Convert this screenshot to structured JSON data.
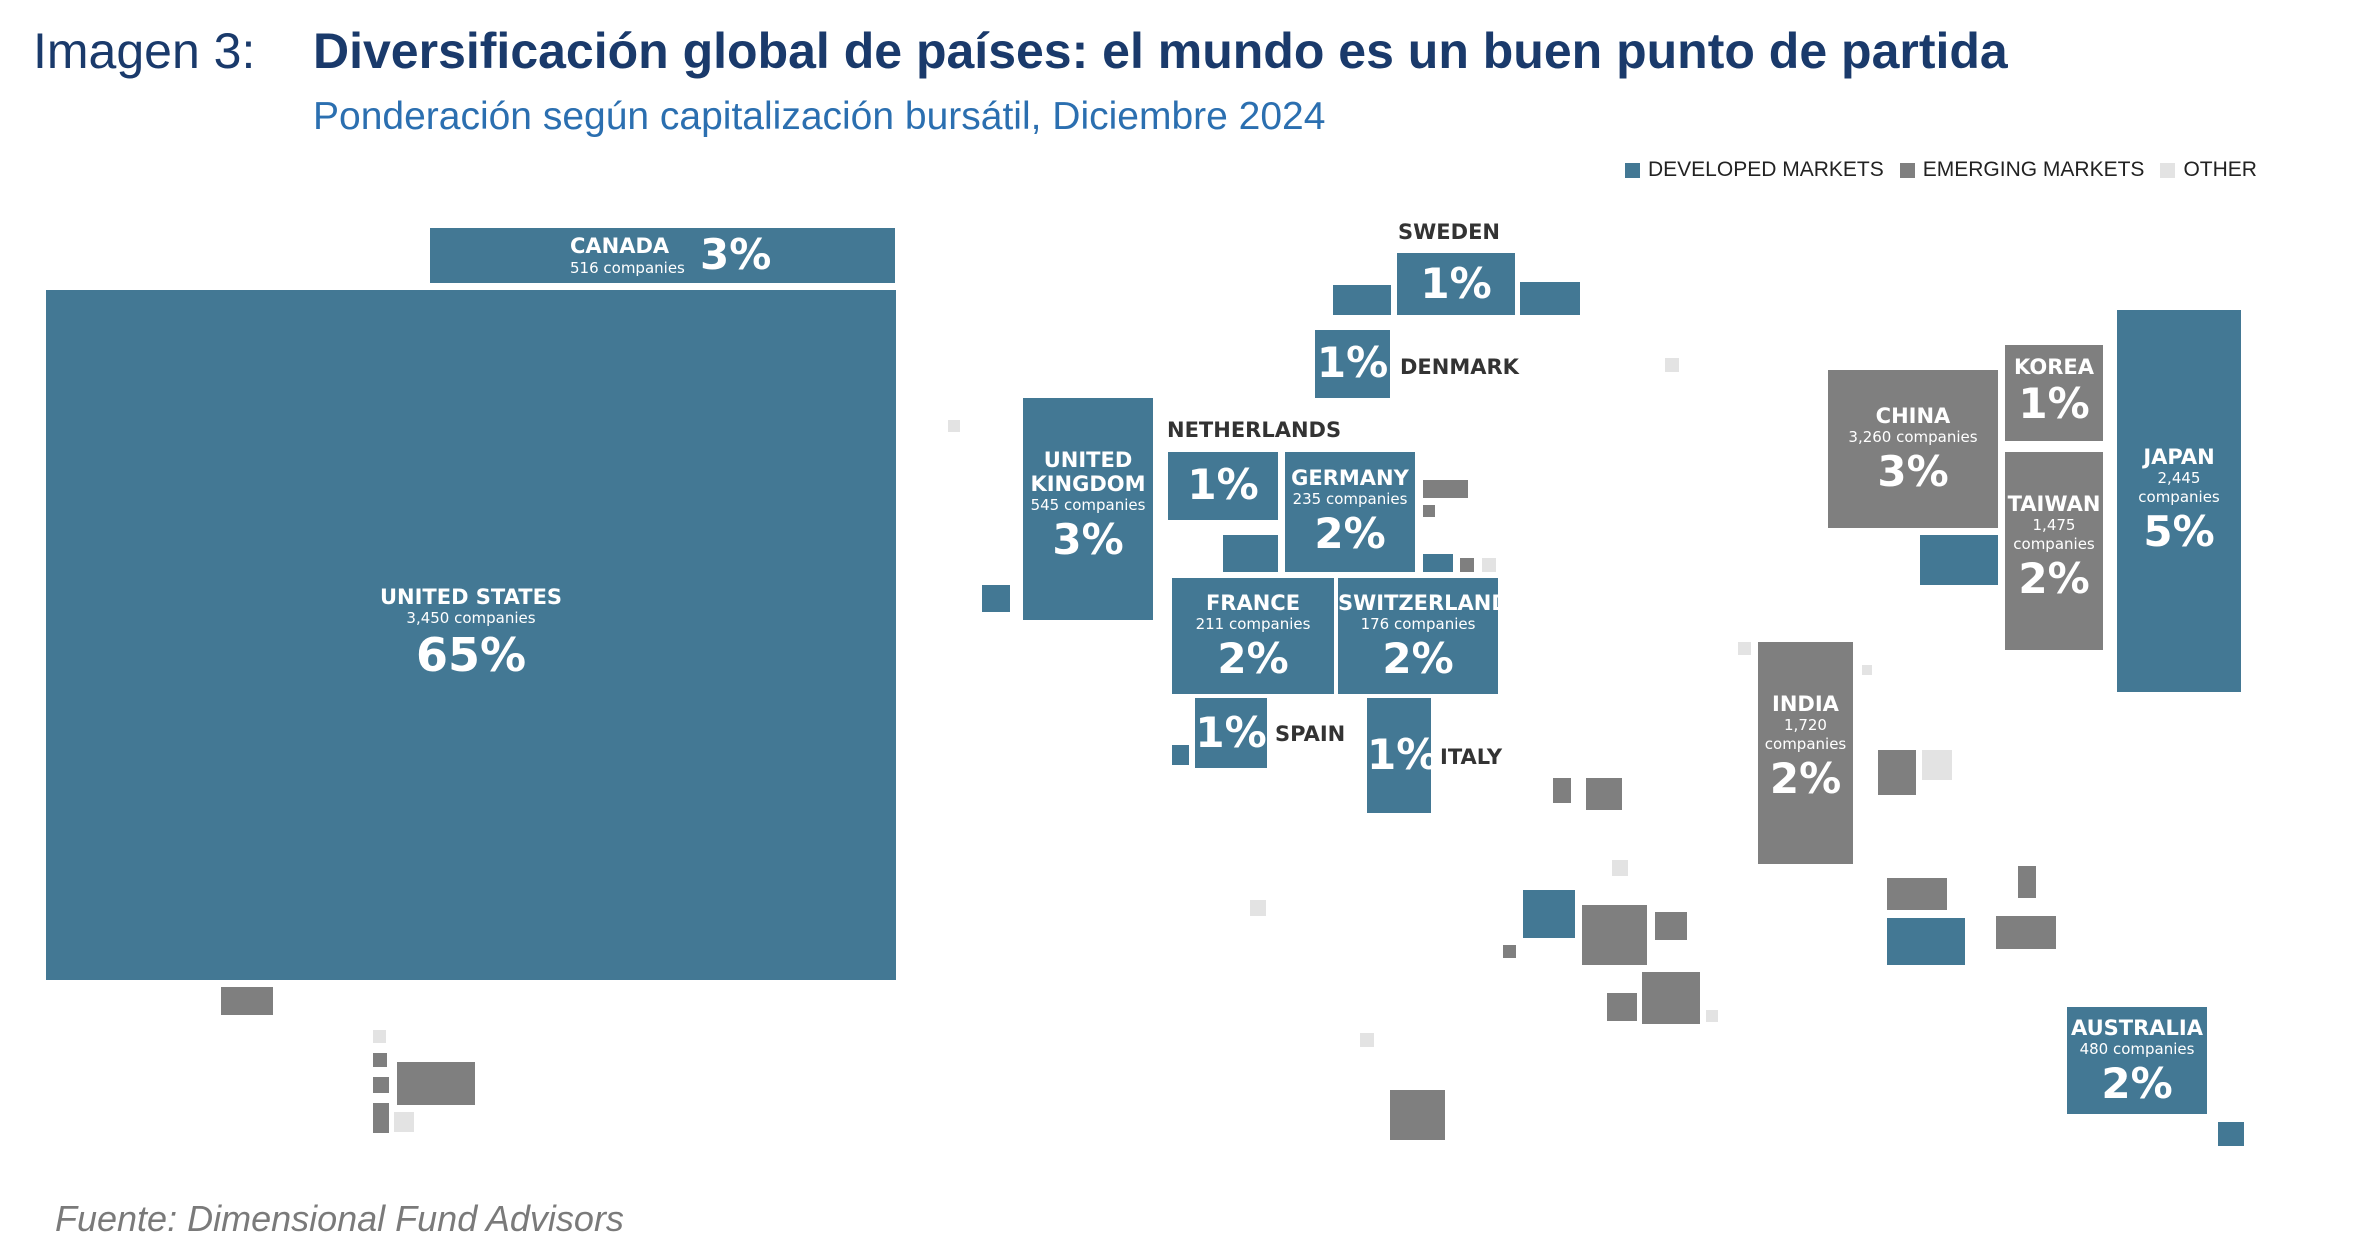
{
  "header": {
    "figure_label": "Imagen 3:",
    "title": "Diversificación global de países: el mundo es un buen punto de partida",
    "subtitle": "Ponderación según capitalización bursátil, Diciembre 2024"
  },
  "legend": [
    {
      "label": "DEVELOPED MARKETS",
      "color": "#437894"
    },
    {
      "label": "EMERGING MARKETS",
      "color": "#7f7f7f"
    },
    {
      "label": "OTHER",
      "color": "#e3e3e3"
    }
  ],
  "countries": {
    "canada": {
      "name": "CANADA",
      "companies": "516 companies",
      "pct": "3%"
    },
    "united_states": {
      "name": "UNITED STATES",
      "companies": "3,450 companies",
      "pct": "65%"
    },
    "sweden": {
      "name": "SWEDEN",
      "pct": "1%"
    },
    "denmark": {
      "name": "DENMARK",
      "pct": "1%"
    },
    "united_kingdom": {
      "name": "UNITED\nKINGDOM",
      "companies": "545 companies",
      "pct": "3%"
    },
    "netherlands": {
      "name": "NETHERLANDS",
      "pct": "1%"
    },
    "germany": {
      "name": "GERMANY",
      "companies": "235 companies",
      "pct": "2%"
    },
    "france": {
      "name": "FRANCE",
      "companies": "211 companies",
      "pct": "2%"
    },
    "switzerland": {
      "name": "SWITZERLAND",
      "companies": "176 companies",
      "pct": "2%"
    },
    "spain": {
      "name": "SPAIN",
      "pct": "1%"
    },
    "italy": {
      "name": "ITALY",
      "pct": "1%"
    },
    "china": {
      "name": "CHINA",
      "companies": "3,260 companies",
      "pct": "3%"
    },
    "korea": {
      "name": "KOREA",
      "pct": "1%"
    },
    "japan": {
      "name": "JAPAN",
      "companies": "2,445\ncompanies",
      "pct": "5%"
    },
    "taiwan": {
      "name": "TAIWAN",
      "companies": "1,475\ncompanies",
      "pct": "2%"
    },
    "india": {
      "name": "INDIA",
      "companies": "1,720\ncompanies",
      "pct": "2%"
    },
    "australia": {
      "name": "AUSTRALIA",
      "companies": "480 companies",
      "pct": "2%"
    }
  },
  "source": "Fuente: Dimensional Fund Advisors"
}
